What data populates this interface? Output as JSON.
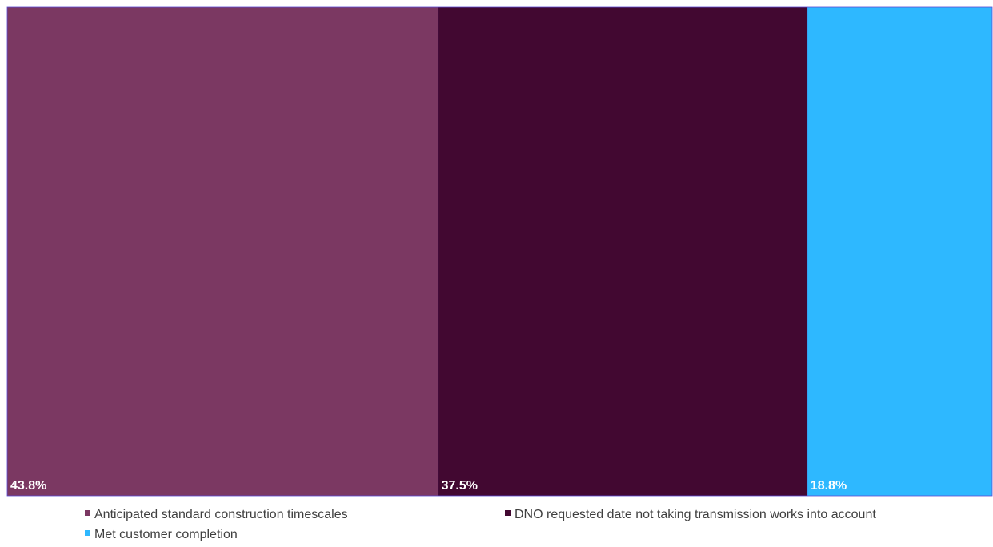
{
  "chart_data": {
    "type": "treemap",
    "title": "",
    "categories": [
      "Anticipated standard construction timescales",
      "DNO requested date not taking transmission works into account",
      "Met customer completion"
    ],
    "values": [
      43.8,
      37.5,
      18.8
    ],
    "data_labels": [
      "43.8%",
      "37.5%",
      "18.8%"
    ],
    "colors": [
      "#7b3862",
      "#420831",
      "#2eb8ff"
    ],
    "legend_position": "bottom",
    "grid": false
  }
}
